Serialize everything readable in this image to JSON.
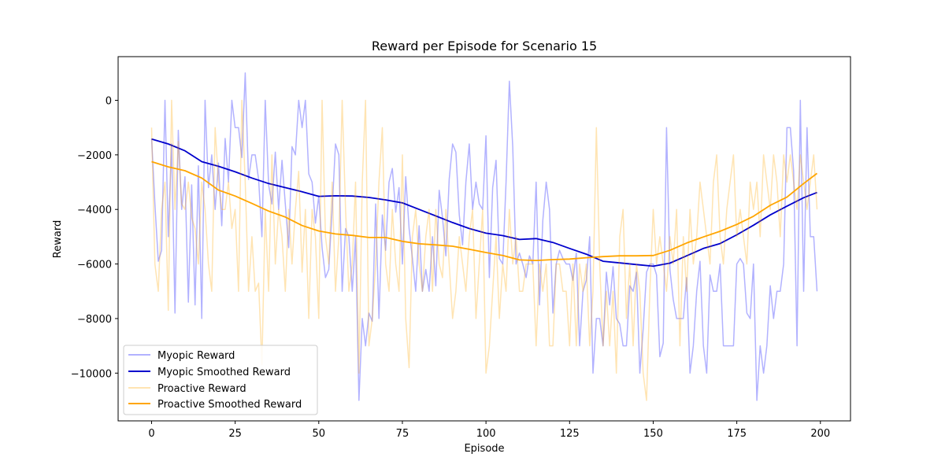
{
  "chart_data": {
    "type": "line",
    "title": "Reward per Episode for Scenario 15",
    "xlabel": "Episode",
    "ylabel": "Reward",
    "xlim": [
      -10,
      209
    ],
    "ylim": [
      -11750,
      1600
    ],
    "xticks": [
      0,
      25,
      50,
      75,
      100,
      125,
      150,
      175,
      200
    ],
    "yticks": [
      0,
      -2000,
      -4000,
      -6000,
      -8000,
      -10000
    ],
    "ytick_labels": [
      "0",
      "−2000",
      "−4000",
      "−6000",
      "−8000",
      "−10000"
    ],
    "grid": false,
    "legend_position": "lower-left",
    "series": [
      {
        "name": "Myopic Reward",
        "color": "#0000ff",
        "alpha": 0.3,
        "style": "raw",
        "x": [
          0,
          1,
          2,
          3,
          4,
          5,
          6,
          7,
          8,
          9,
          10,
          11,
          12,
          13,
          14,
          15,
          16,
          17,
          18,
          19,
          20,
          21,
          22,
          23,
          24,
          25,
          26,
          27,
          28,
          29,
          30,
          31,
          32,
          33,
          34,
          35,
          36,
          37,
          38,
          39,
          40,
          41,
          42,
          43,
          44,
          45,
          46,
          47,
          48,
          49,
          50,
          51,
          52,
          53,
          54,
          55,
          56,
          57,
          58,
          59,
          60,
          61,
          62,
          63,
          64,
          65,
          66,
          67,
          68,
          69,
          70,
          71,
          72,
          73,
          74,
          75,
          76,
          77,
          78,
          79,
          80,
          81,
          82,
          83,
          84,
          85,
          86,
          87,
          88,
          89,
          90,
          91,
          92,
          93,
          94,
          95,
          96,
          97,
          98,
          99,
          100,
          101,
          102,
          103,
          104,
          105,
          106,
          107,
          108,
          109,
          110,
          111,
          112,
          113,
          114,
          115,
          116,
          117,
          118,
          119,
          120,
          121,
          122,
          123,
          124,
          125,
          126,
          127,
          128,
          129,
          130,
          131,
          132,
          133,
          134,
          135,
          136,
          137,
          138,
          139,
          140,
          141,
          142,
          143,
          144,
          145,
          146,
          147,
          148,
          149,
          150,
          151,
          152,
          153,
          154,
          155,
          156,
          157,
          158,
          159,
          160,
          161,
          162,
          163,
          164,
          165,
          166,
          167,
          168,
          169,
          170,
          171,
          172,
          173,
          174,
          175,
          176,
          177,
          178,
          179,
          180,
          181,
          182,
          183,
          184,
          185,
          186,
          187,
          188,
          189,
          190,
          191,
          192,
          193,
          194,
          195,
          196,
          197,
          198,
          199
        ],
        "y": [
          -1400,
          -3800,
          -5900,
          -5500,
          0,
          -5000,
          -1600,
          -7800,
          -1100,
          -4000,
          -2800,
          -7400,
          -3100,
          -7500,
          -2400,
          -8000,
          0,
          -3200,
          -2000,
          -4000,
          -2300,
          -4600,
          -1400,
          -3000,
          0,
          -1000,
          -1000,
          -2100,
          1000,
          -2900,
          -2000,
          -2000,
          -2900,
          -5000,
          0,
          -3100,
          -3800,
          -1900,
          -4000,
          -2200,
          -3800,
          -5400,
          -1700,
          -2000,
          0,
          -1000,
          0,
          -2700,
          -3000,
          -4500,
          -3500,
          -5400,
          -6500,
          -6200,
          -4000,
          -1600,
          -2000,
          -7000,
          -4700,
          -5000,
          -7000,
          -5000,
          -11000,
          -8000,
          -9000,
          -7800,
          -8100,
          -3800,
          -8000,
          -4200,
          -5500,
          -3000,
          -2500,
          -4100,
          -3200,
          -6000,
          -2800,
          -4700,
          -5800,
          -7000,
          -4600,
          -7000,
          -6200,
          -7000,
          -5000,
          -6800,
          -3300,
          -4300,
          -5700,
          -2900,
          -1600,
          -1900,
          -4200,
          -5300,
          -3000,
          -1600,
          -4000,
          -3000,
          -3800,
          -4000,
          -1300,
          -6500,
          -3200,
          -2200,
          -5800,
          -6000,
          -3000,
          700,
          -1700,
          -6000,
          -5600,
          -6000,
          -6500,
          -5700,
          -6000,
          -3000,
          -7500,
          -4400,
          -3000,
          -4000,
          -7800,
          -6000,
          -5500,
          -5800,
          -6000,
          -6000,
          -6600,
          -5600,
          -9000,
          -7000,
          -6600,
          -5000,
          -10000,
          -8000,
          -8000,
          -9000,
          -6300,
          -7500,
          -6100,
          -8000,
          -8200,
          -9000,
          -9000,
          -6800,
          -7000,
          -6300,
          -10000,
          -8400,
          -6300,
          -6000,
          -6000,
          -6400,
          -9400,
          -8900,
          -1000,
          -6200,
          -7300,
          -8000,
          -8000,
          -8000,
          -6500,
          -10000,
          -9000,
          -7000,
          -5900,
          -9000,
          -10000,
          -6400,
          -7000,
          -7000,
          -6000,
          -9000,
          -9000,
          -9000,
          -9000,
          -6000,
          -5800,
          -6000,
          -7800,
          -8000,
          -6000,
          -11000,
          -9000,
          -10000,
          -9000,
          -6800,
          -8000,
          -7000,
          -7000,
          -6000,
          -1000,
          -1000,
          -2600,
          -9000,
          0,
          -7000,
          -1000,
          -5000,
          -5000,
          -7000
        ]
      },
      {
        "name": "Myopic Smoothed Reward",
        "color": "#0000cc",
        "alpha": 1,
        "style": "smooth",
        "x": [
          0,
          5,
          10,
          15,
          20,
          25,
          30,
          35,
          40,
          45,
          50,
          55,
          60,
          65,
          70,
          75,
          80,
          85,
          90,
          95,
          100,
          105,
          110,
          115,
          120,
          125,
          130,
          135,
          140,
          145,
          150,
          155,
          160,
          165,
          170,
          175,
          180,
          185,
          190,
          195,
          199
        ],
        "y": [
          -1420,
          -1600,
          -1850,
          -2250,
          -2420,
          -2620,
          -2850,
          -3050,
          -3200,
          -3350,
          -3520,
          -3500,
          -3510,
          -3560,
          -3650,
          -3760,
          -4000,
          -4240,
          -4480,
          -4700,
          -4870,
          -4960,
          -5100,
          -5070,
          -5210,
          -5430,
          -5640,
          -5900,
          -5960,
          -6020,
          -6080,
          -5970,
          -5700,
          -5430,
          -5250,
          -4930,
          -4580,
          -4200,
          -3880,
          -3570,
          -3380
        ]
      },
      {
        "name": "Proactive Reward",
        "color": "#ffa500",
        "alpha": 0.3,
        "style": "raw",
        "x": [
          0,
          1,
          2,
          3,
          4,
          5,
          6,
          7,
          8,
          9,
          10,
          11,
          12,
          13,
          14,
          15,
          16,
          17,
          18,
          19,
          20,
          21,
          22,
          23,
          24,
          25,
          26,
          27,
          28,
          29,
          30,
          31,
          32,
          33,
          34,
          35,
          36,
          37,
          38,
          39,
          40,
          41,
          42,
          43,
          44,
          45,
          46,
          47,
          48,
          49,
          50,
          51,
          52,
          53,
          54,
          55,
          56,
          57,
          58,
          59,
          60,
          61,
          62,
          63,
          64,
          65,
          66,
          67,
          68,
          69,
          70,
          71,
          72,
          73,
          74,
          75,
          76,
          77,
          78,
          79,
          80,
          81,
          82,
          83,
          84,
          85,
          86,
          87,
          88,
          89,
          90,
          91,
          92,
          93,
          94,
          95,
          96,
          97,
          98,
          99,
          100,
          101,
          102,
          103,
          104,
          105,
          106,
          107,
          108,
          109,
          110,
          111,
          112,
          113,
          114,
          115,
          116,
          117,
          118,
          119,
          120,
          121,
          122,
          123,
          124,
          125,
          126,
          127,
          128,
          129,
          130,
          131,
          132,
          133,
          134,
          135,
          136,
          137,
          138,
          139,
          140,
          141,
          142,
          143,
          144,
          145,
          146,
          147,
          148,
          149,
          150,
          151,
          152,
          153,
          154,
          155,
          156,
          157,
          158,
          159,
          160,
          161,
          162,
          163,
          164,
          165,
          166,
          167,
          168,
          169,
          170,
          171,
          172,
          173,
          174,
          175,
          176,
          177,
          178,
          179,
          180,
          181,
          182,
          183,
          184,
          185,
          186,
          187,
          188,
          189,
          190,
          191,
          192,
          193,
          194,
          195,
          196,
          197,
          198,
          199
        ],
        "y": [
          -1000,
          -6000,
          -7000,
          -4000,
          -3000,
          -7700,
          0,
          -4000,
          -1500,
          -3800,
          -4000,
          -3000,
          -4300,
          -4700,
          -6000,
          -3000,
          -4000,
          -6000,
          -7000,
          -1000,
          -3000,
          -4000,
          -4000,
          -3000,
          -4700,
          -4000,
          -7000,
          0,
          -3000,
          -7000,
          -5000,
          -7000,
          -6700,
          -9700,
          -4000,
          -7000,
          -2000,
          -6000,
          -4000,
          -5000,
          -7000,
          -4000,
          -6000,
          -4000,
          -2600,
          -6300,
          -4000,
          -8000,
          -4000,
          -5000,
          -8000,
          0,
          -5000,
          -6000,
          -3000,
          -7000,
          -5000,
          0,
          -4000,
          -7000,
          -6000,
          -3000,
          -10000,
          -3000,
          0,
          -9000,
          -8000,
          -6000,
          -3000,
          -1000,
          -6000,
          -7000,
          -4000,
          -6000,
          -7000,
          -2000,
          -8000,
          -9800,
          -5000,
          -4000,
          -6000,
          -7000,
          -5000,
          -4000,
          -7000,
          -4000,
          -6000,
          -6500,
          -4000,
          -6000,
          -8000,
          -7000,
          -5000,
          -6000,
          -7000,
          -5000,
          -4000,
          -8000,
          -6000,
          -4000,
          -10000,
          -9000,
          -7000,
          -5000,
          -8000,
          -6000,
          -7000,
          -4000,
          -6000,
          -5000,
          -7000,
          -7000,
          -6000,
          -6000,
          -6000,
          -9000,
          -6000,
          -7000,
          -6000,
          -9000,
          -9000,
          -6000,
          -6000,
          -7000,
          -7000,
          -9000,
          -6000,
          -9000,
          -6000,
          -7000,
          -6000,
          -9000,
          -7000,
          -1000,
          -6000,
          -9000,
          -7000,
          -9000,
          -7000,
          -10000,
          -5000,
          -4000,
          -8000,
          -6000,
          -9000,
          -6000,
          -7000,
          -10000,
          -11000,
          -7000,
          -4000,
          -6000,
          -5000,
          -6000,
          -7000,
          -5000,
          -6000,
          -4000,
          -9000,
          -5000,
          -7000,
          -4000,
          -6000,
          -5000,
          -3000,
          -4000,
          -5000,
          -6000,
          -3000,
          -2000,
          -5000,
          -6000,
          -4000,
          -3000,
          -2000,
          -5000,
          -4000,
          -5000,
          -6000,
          -3000,
          -4000,
          -3000,
          -5000,
          -2000,
          -3000,
          -4000,
          -2000,
          -3000,
          -5000,
          -2000,
          -3000,
          -2000,
          -3000,
          -4000,
          -2000,
          -3000,
          -4000,
          -3000,
          -2000,
          -4000
        ]
      },
      {
        "name": "Proactive Smoothed Reward",
        "color": "#ffa500",
        "alpha": 1,
        "style": "smooth",
        "x": [
          0,
          5,
          10,
          15,
          20,
          25,
          30,
          35,
          40,
          45,
          50,
          55,
          60,
          65,
          70,
          75,
          80,
          85,
          90,
          95,
          100,
          105,
          110,
          115,
          120,
          125,
          130,
          135,
          140,
          145,
          150,
          155,
          160,
          165,
          170,
          175,
          180,
          185,
          190,
          195,
          199
        ],
        "y": [
          -2250,
          -2440,
          -2580,
          -2850,
          -3290,
          -3510,
          -3780,
          -4060,
          -4280,
          -4590,
          -4790,
          -4900,
          -4950,
          -5030,
          -5030,
          -5170,
          -5260,
          -5300,
          -5350,
          -5460,
          -5580,
          -5690,
          -5850,
          -5870,
          -5840,
          -5820,
          -5770,
          -5730,
          -5700,
          -5700,
          -5690,
          -5500,
          -5230,
          -5010,
          -4800,
          -4550,
          -4250,
          -3850,
          -3550,
          -3050,
          -2680
        ]
      }
    ]
  }
}
